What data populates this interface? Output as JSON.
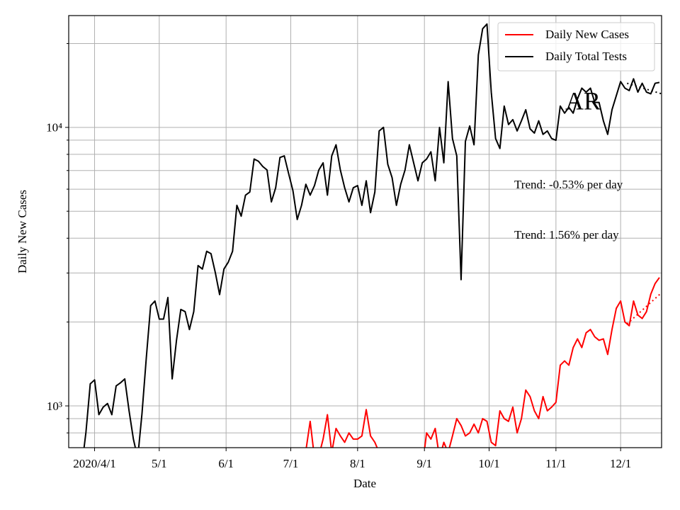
{
  "chart_data": {
    "type": "line",
    "xlabel": "Date",
    "ylabel": "Daily New Cases",
    "log_y": true,
    "grid": true,
    "legend": "upper right",
    "xlim": [
      "2020-03-20",
      "2020-12-20"
    ],
    "xticks": [
      {
        "value": "2020-04-01",
        "label": "2020/4/1"
      },
      {
        "value": "2020-05-01",
        "label": "5/1"
      },
      {
        "value": "2020-06-01",
        "label": "6/1"
      },
      {
        "value": "2020-07-01",
        "label": "7/1"
      },
      {
        "value": "2020-08-01",
        "label": "8/1"
      },
      {
        "value": "2020-09-01",
        "label": "9/1"
      },
      {
        "value": "2020-10-01",
        "label": "10/1"
      },
      {
        "value": "2020-11-01",
        "label": "11/1"
      },
      {
        "value": "2020-12-01",
        "label": "12/1"
      }
    ],
    "ylim": [
      708,
      25200
    ],
    "yticks": [
      {
        "value": 1000,
        "label": "10³"
      },
      {
        "value": 10000,
        "label": "10⁴"
      }
    ],
    "yminorticks": [
      800,
      900,
      2000,
      3000,
      4000,
      5000,
      6000,
      7000,
      8000,
      9000,
      20000
    ],
    "x": [
      "2020-03-26",
      "2020-03-28",
      "2020-03-30",
      "2020-04-01",
      "2020-04-03",
      "2020-04-05",
      "2020-04-07",
      "2020-04-09",
      "2020-04-11",
      "2020-04-13",
      "2020-04-15",
      "2020-04-17",
      "2020-04-19",
      "2020-04-21",
      "2020-04-23",
      "2020-04-25",
      "2020-04-27",
      "2020-04-29",
      "2020-05-01",
      "2020-05-03",
      "2020-05-05",
      "2020-05-07",
      "2020-05-09",
      "2020-05-11",
      "2020-05-13",
      "2020-05-15",
      "2020-05-17",
      "2020-05-19",
      "2020-05-21",
      "2020-05-23",
      "2020-05-25",
      "2020-05-27",
      "2020-05-29",
      "2020-05-31",
      "2020-06-02",
      "2020-06-04",
      "2020-06-06",
      "2020-06-08",
      "2020-06-10",
      "2020-06-12",
      "2020-06-14",
      "2020-06-16",
      "2020-06-18",
      "2020-06-20",
      "2020-06-22",
      "2020-06-24",
      "2020-06-26",
      "2020-06-28",
      "2020-06-30",
      "2020-07-02",
      "2020-07-04",
      "2020-07-06",
      "2020-07-08",
      "2020-07-10",
      "2020-07-12",
      "2020-07-14",
      "2020-07-16",
      "2020-07-18",
      "2020-07-20",
      "2020-07-22",
      "2020-07-24",
      "2020-07-26",
      "2020-07-28",
      "2020-07-30",
      "2020-08-01",
      "2020-08-03",
      "2020-08-05",
      "2020-08-07",
      "2020-08-09",
      "2020-08-11",
      "2020-08-13",
      "2020-08-15",
      "2020-08-17",
      "2020-08-19",
      "2020-08-21",
      "2020-08-23",
      "2020-08-25",
      "2020-08-27",
      "2020-08-29",
      "2020-08-31",
      "2020-09-02",
      "2020-09-04",
      "2020-09-06",
      "2020-09-08",
      "2020-09-10",
      "2020-09-12",
      "2020-09-14",
      "2020-09-16",
      "2020-09-18",
      "2020-09-20",
      "2020-09-22",
      "2020-09-24",
      "2020-09-26",
      "2020-09-28",
      "2020-09-30",
      "2020-10-02",
      "2020-10-04",
      "2020-10-06",
      "2020-10-08",
      "2020-10-10",
      "2020-10-12",
      "2020-10-14",
      "2020-10-16",
      "2020-10-18",
      "2020-10-20",
      "2020-10-22",
      "2020-10-24",
      "2020-10-26",
      "2020-10-28",
      "2020-10-30",
      "2020-11-01",
      "2020-11-03",
      "2020-11-05",
      "2020-11-07",
      "2020-11-09",
      "2020-11-11",
      "2020-11-13",
      "2020-11-15",
      "2020-11-17",
      "2020-11-19",
      "2020-11-21",
      "2020-11-23",
      "2020-11-25",
      "2020-11-27",
      "2020-11-29",
      "2020-12-01",
      "2020-12-03",
      "2020-12-05",
      "2020-12-07",
      "2020-12-09",
      "2020-12-11",
      "2020-12-13",
      "2020-12-15",
      "2020-12-17",
      "2020-12-19"
    ],
    "series": [
      {
        "name": "Daily New Cases",
        "color": "#ff0000",
        "values": [
          null,
          null,
          null,
          null,
          null,
          null,
          null,
          null,
          null,
          null,
          null,
          null,
          null,
          null,
          null,
          null,
          null,
          null,
          null,
          null,
          null,
          null,
          null,
          null,
          null,
          null,
          null,
          null,
          null,
          null,
          null,
          null,
          null,
          null,
          null,
          null,
          null,
          null,
          null,
          null,
          null,
          null,
          null,
          null,
          null,
          null,
          null,
          null,
          null,
          null,
          null,
          null,
          690,
          880,
          650,
          660,
          760,
          930,
          680,
          830,
          780,
          740,
          800,
          760,
          760,
          780,
          970,
          780,
          740,
          680,
          650,
          600,
          600,
          600,
          600,
          600,
          600,
          600,
          600,
          600,
          800,
          760,
          830,
          650,
          740,
          680,
          780,
          900,
          850,
          780,
          800,
          860,
          800,
          900,
          880,
          740,
          720,
          960,
          900,
          880,
          990,
          800,
          900,
          1140,
          1080,
          960,
          900,
          1080,
          960,
          990,
          1030,
          1400,
          1450,
          1400,
          1620,
          1740,
          1620,
          1830,
          1880,
          1770,
          1720,
          1740,
          1530,
          1880,
          2240,
          2380,
          2000,
          1940,
          2380,
          2120,
          2060,
          2180,
          2520,
          2750,
          2890
        ]
      },
      {
        "name": "Daily Total Tests",
        "color": "#000000",
        "values": [
          600,
          805,
          1200,
          1240,
          930,
          990,
          1020,
          930,
          1180,
          1210,
          1250,
          960,
          760,
          650,
          940,
          1490,
          2290,
          2380,
          2050,
          2050,
          2450,
          1250,
          1720,
          2220,
          2180,
          1880,
          2180,
          3190,
          3100,
          3590,
          3520,
          3010,
          2510,
          3100,
          3280,
          3590,
          5250,
          4800,
          5710,
          5860,
          7700,
          7560,
          7240,
          7030,
          5400,
          6070,
          7800,
          7900,
          6830,
          5930,
          4670,
          5250,
          6250,
          5710,
          6180,
          7030,
          7460,
          5710,
          7900,
          8660,
          7030,
          6070,
          5400,
          6070,
          6180,
          5250,
          6430,
          4940,
          5860,
          9710,
          10000,
          7370,
          6600,
          5250,
          6250,
          7030,
          8660,
          7460,
          6430,
          7460,
          7700,
          8170,
          6430,
          10000,
          7460,
          14600,
          9120,
          7900,
          2840,
          8900,
          10120,
          8660,
          18200,
          22600,
          23500,
          13380,
          9120,
          8400,
          11930,
          10240,
          10660,
          9710,
          10560,
          11570,
          9880,
          9540,
          10560,
          9440,
          9710,
          9120,
          8990,
          11930,
          11250,
          11800,
          11250,
          12660,
          13830,
          13380,
          13830,
          12290,
          12290,
          10560,
          9440,
          11570,
          13000,
          14600,
          13830,
          13560,
          14940,
          13380,
          14400,
          13380,
          13200,
          14400,
          14500
        ]
      }
    ],
    "trend_lines": [
      {
        "color": "#ff0000",
        "x": [
          "2020-12-04",
          "2020-12-20"
        ],
        "values": [
          1970,
          2550
        ]
      },
      {
        "color": "#000000",
        "x": [
          "2020-12-04",
          "2020-12-20"
        ],
        "values": [
          14400,
          13200
        ]
      }
    ],
    "annotations": [
      "Trend: -0.53% per day",
      "Trend: 1.56% per day",
      "AR"
    ]
  }
}
